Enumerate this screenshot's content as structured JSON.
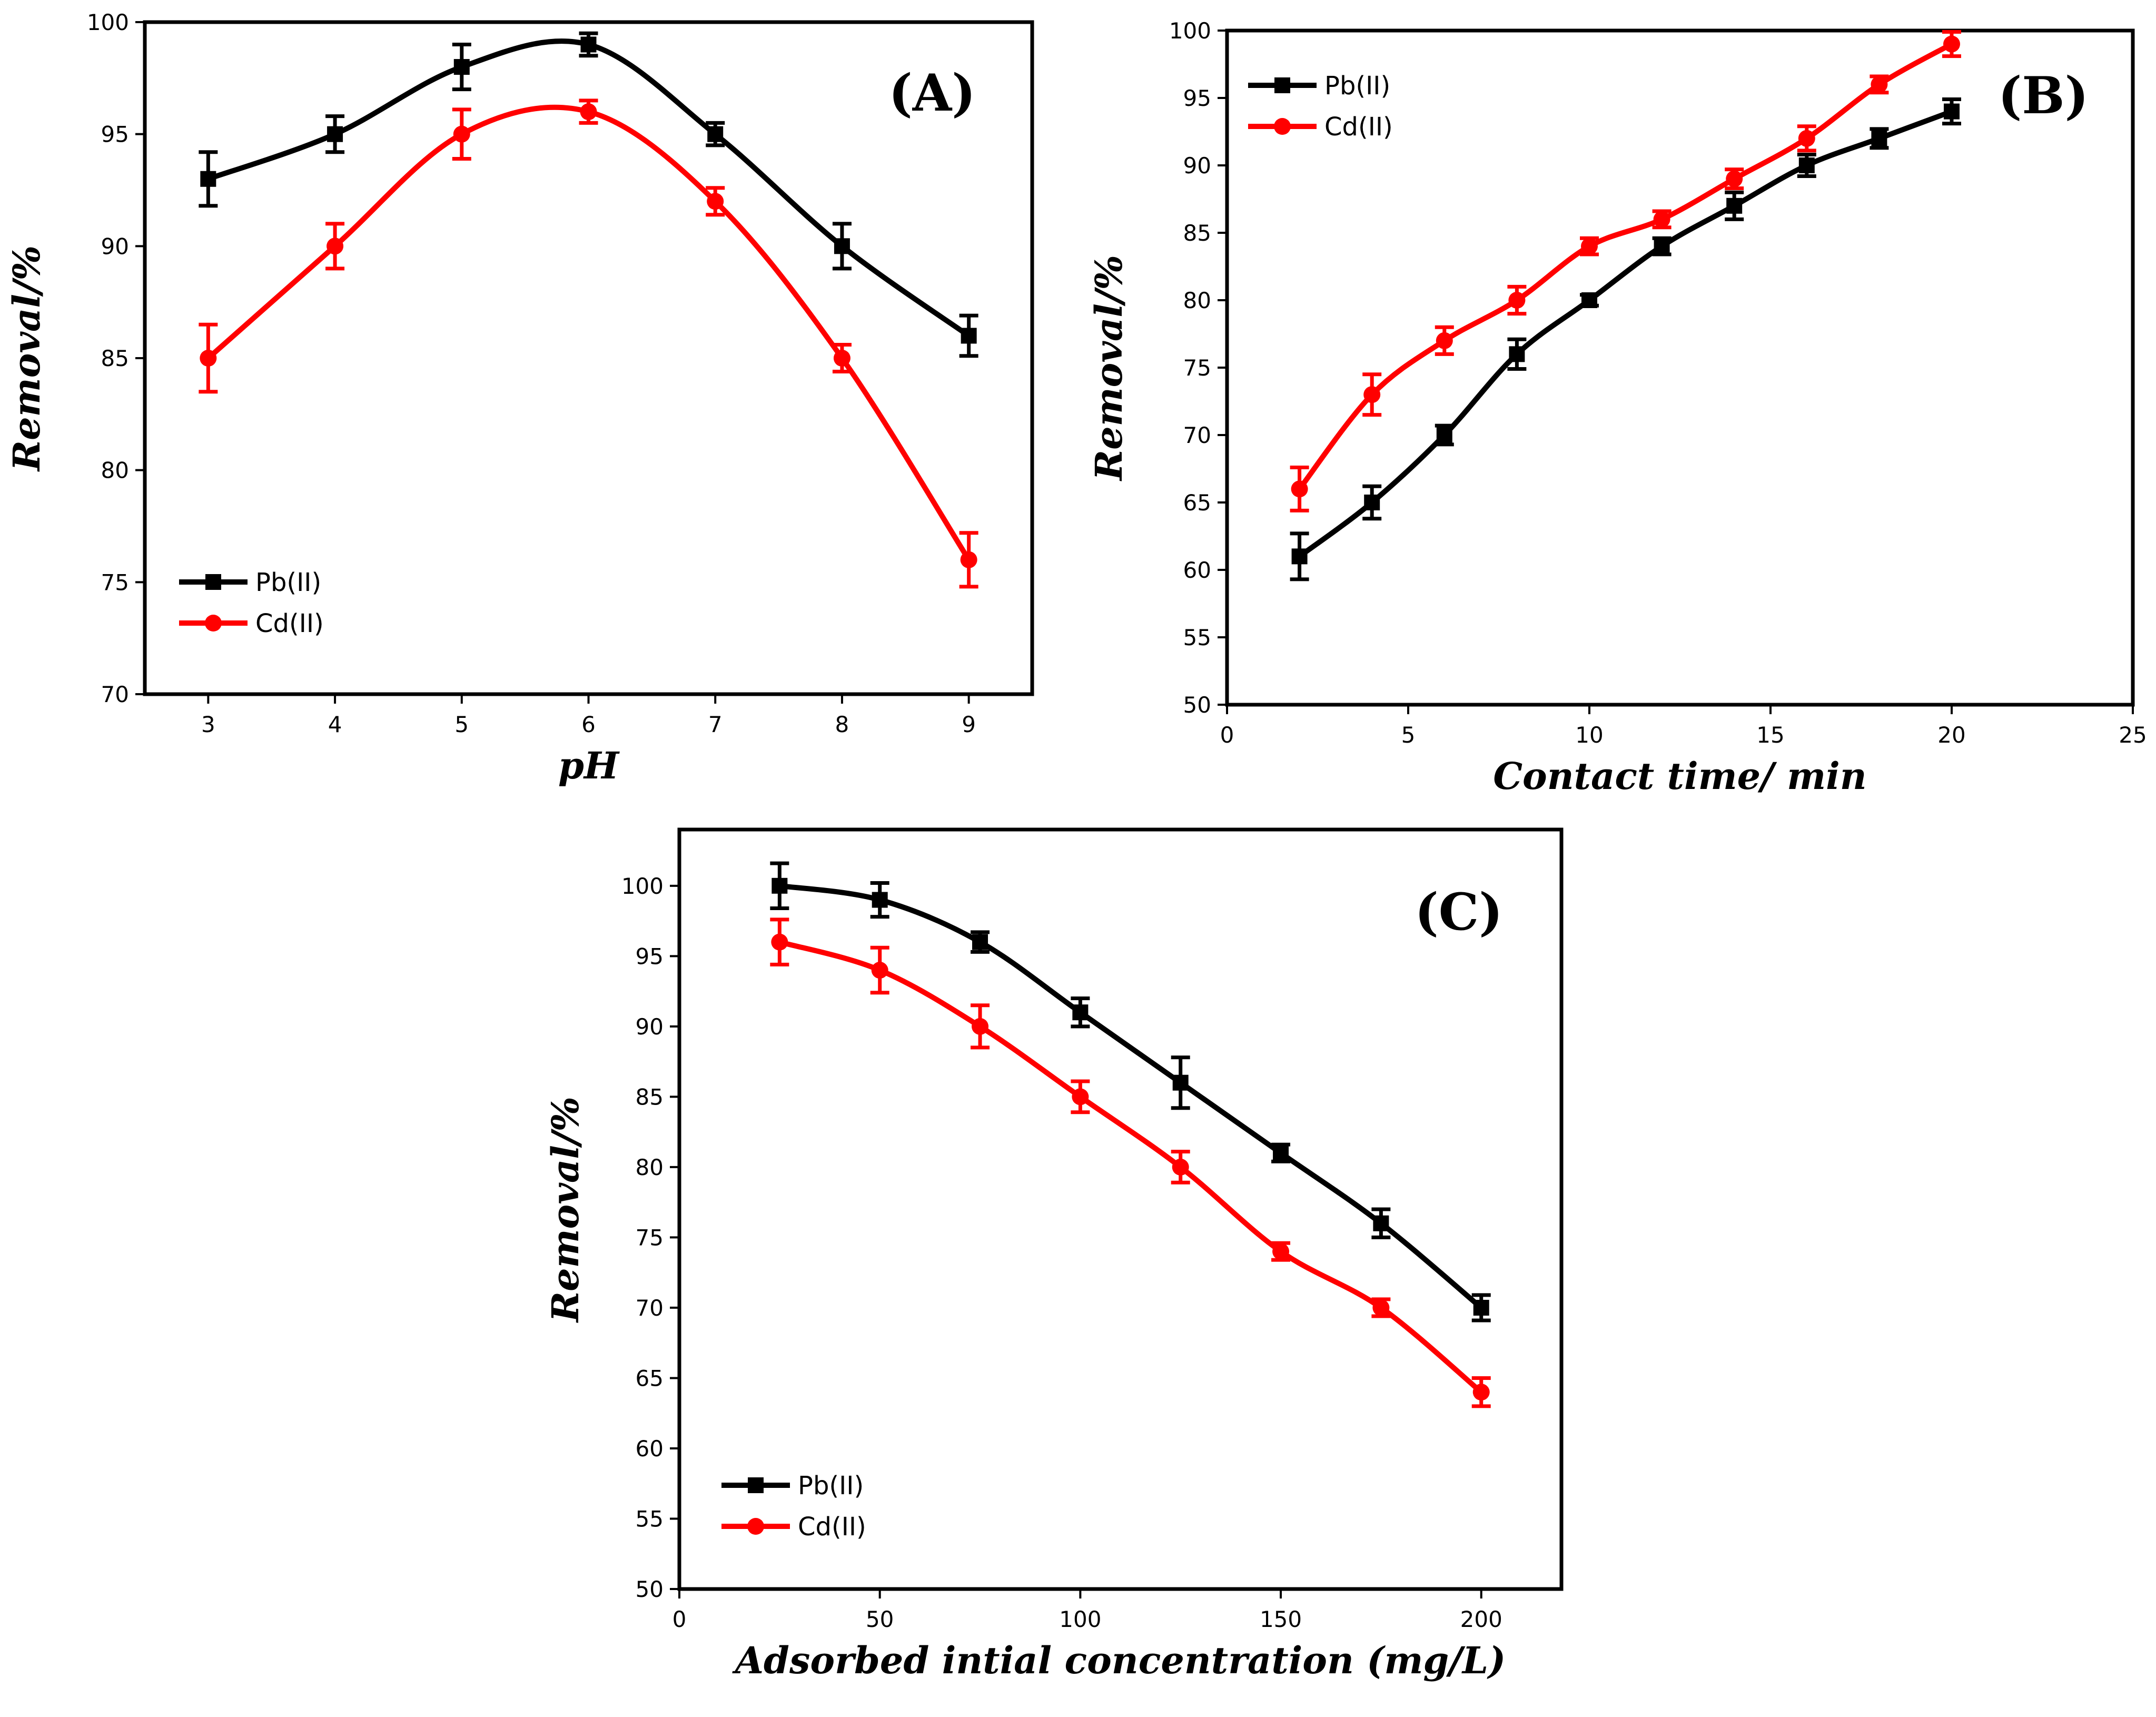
{
  "colors": {
    "pb": "#000000",
    "cd": "#ff0000"
  },
  "chart_data": [
    {
      "id": "A",
      "type": "line",
      "panel_label": "(A)",
      "xlabel": "pH",
      "ylabel": "Removal/%",
      "xlim": [
        2.5,
        9.5
      ],
      "ylim": [
        70,
        100
      ],
      "x_ticks": [
        3,
        4,
        5,
        6,
        7,
        8,
        9
      ],
      "y_ticks": [
        70,
        75,
        80,
        85,
        90,
        95,
        100
      ],
      "x_tick_labels": [
        "3",
        "4",
        "5",
        "6",
        "7",
        "8",
        "9"
      ],
      "y_tick_labels": [
        "70",
        "75",
        "80",
        "85",
        "90",
        "95",
        "100"
      ],
      "legend_position": "bottom-left",
      "series": [
        {
          "name": "Pb(II)",
          "marker": "square",
          "x": [
            3,
            4,
            5,
            6,
            7,
            8,
            9
          ],
          "values": [
            93,
            95,
            98,
            99,
            95,
            90,
            86
          ],
          "errors": [
            1.2,
            0.8,
            1.0,
            0.5,
            0.5,
            1.0,
            0.9
          ]
        },
        {
          "name": "Cd(II)",
          "marker": "circle",
          "x": [
            3,
            4,
            5,
            6,
            7,
            8,
            9
          ],
          "values": [
            85,
            90,
            95,
            96,
            92,
            85,
            76
          ],
          "errors": [
            1.5,
            1.0,
            1.1,
            0.5,
            0.6,
            0.6,
            1.2
          ]
        }
      ]
    },
    {
      "id": "B",
      "type": "line",
      "panel_label": "(B)",
      "xlabel": "Contact time/ min",
      "ylabel": "Removal/%",
      "xlim": [
        0,
        25
      ],
      "ylim": [
        50,
        100
      ],
      "x_ticks": [
        0,
        5,
        10,
        15,
        20,
        25
      ],
      "y_ticks": [
        50,
        55,
        60,
        65,
        70,
        75,
        80,
        85,
        90,
        95,
        100
      ],
      "x_tick_labels": [
        "0",
        "5",
        "10",
        "15",
        "20",
        "25"
      ],
      "y_tick_labels": [
        "50",
        "55",
        "60",
        "65",
        "70",
        "75",
        "80",
        "85",
        "90",
        "95",
        "100"
      ],
      "legend_position": "top-left",
      "series": [
        {
          "name": "Pb(II)",
          "marker": "square",
          "x": [
            2,
            4,
            6,
            8,
            10,
            12,
            14,
            16,
            18,
            20
          ],
          "values": [
            61,
            65,
            70,
            76,
            80,
            84,
            87,
            90,
            92,
            94
          ],
          "errors": [
            1.7,
            1.2,
            0.7,
            1.1,
            0.4,
            0.6,
            1.0,
            0.8,
            0.7,
            0.9
          ]
        },
        {
          "name": "Cd(II)",
          "marker": "circle",
          "x": [
            2,
            4,
            6,
            8,
            10,
            12,
            14,
            16,
            18,
            20
          ],
          "values": [
            66,
            73,
            77,
            80,
            84,
            86,
            89,
            92,
            96,
            99
          ],
          "errors": [
            1.6,
            1.5,
            1.0,
            1.0,
            0.6,
            0.6,
            0.7,
            0.9,
            0.6,
            0.9
          ]
        }
      ]
    },
    {
      "id": "C",
      "type": "line",
      "panel_label": "(C)",
      "xlabel": "Adsorbed intial concentration (mg/L)",
      "ylabel": "Removal/%",
      "xlim": [
        0,
        220
      ],
      "ylim": [
        50,
        104
      ],
      "x_ticks": [
        0,
        50,
        100,
        150,
        200
      ],
      "y_ticks": [
        50,
        55,
        60,
        65,
        70,
        75,
        80,
        85,
        90,
        95,
        100
      ],
      "x_tick_labels": [
        "0",
        "50",
        "100",
        "150",
        "200"
      ],
      "y_tick_labels": [
        "50",
        "55",
        "60",
        "65",
        "70",
        "75",
        "80",
        "85",
        "90",
        "95",
        "100"
      ],
      "legend_position": "bottom-left",
      "series": [
        {
          "name": "Pb(II)",
          "marker": "square",
          "x": [
            25,
            50,
            75,
            100,
            125,
            150,
            175,
            200
          ],
          "values": [
            100,
            99,
            96,
            91,
            86,
            81,
            76,
            70
          ],
          "errors": [
            1.6,
            1.2,
            0.7,
            1.0,
            1.8,
            0.6,
            1.0,
            0.9
          ]
        },
        {
          "name": "Cd(II)",
          "marker": "circle",
          "x": [
            25,
            50,
            75,
            100,
            125,
            150,
            175,
            200
          ],
          "values": [
            96,
            94,
            90,
            85,
            80,
            74,
            70,
            64
          ],
          "errors": [
            1.6,
            1.6,
            1.5,
            1.1,
            1.1,
            0.6,
            0.6,
            1.0
          ]
        }
      ]
    }
  ]
}
